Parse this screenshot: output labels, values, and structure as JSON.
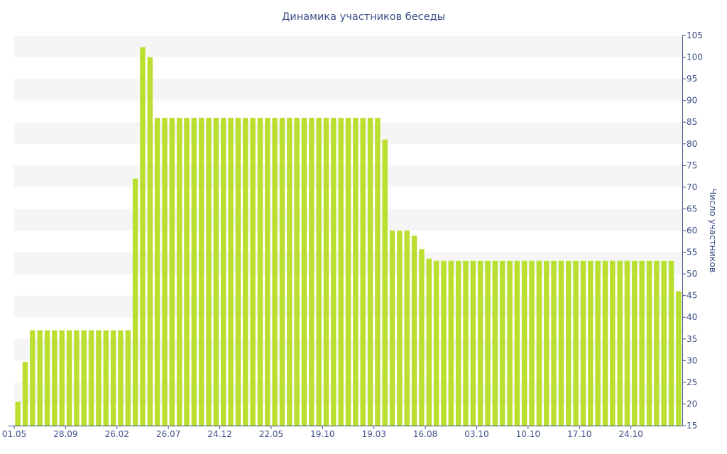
{
  "chart_data": {
    "type": "bar",
    "title": "Динамика участников беседы",
    "xlabel": "",
    "ylabel": "Число участников",
    "ylim": [
      15,
      105
    ],
    "y_ticks": [
      15,
      20,
      25,
      30,
      35,
      40,
      45,
      50,
      55,
      60,
      65,
      70,
      75,
      80,
      85,
      90,
      95,
      100,
      105
    ],
    "y_axis_side": "right",
    "grid": "alternating horizontal bands",
    "legend": "none",
    "bar_color": "#b9df2f",
    "axis_color": "#3e4f86",
    "x_ticks": [
      {
        "label": "01.05",
        "index": 0
      },
      {
        "label": "28.09",
        "index": 7
      },
      {
        "label": "26.02",
        "index": 14
      },
      {
        "label": "26.07",
        "index": 21
      },
      {
        "label": "24.12",
        "index": 28
      },
      {
        "label": "22.05",
        "index": 35
      },
      {
        "label": "19.10",
        "index": 42
      },
      {
        "label": "19.03",
        "index": 49
      },
      {
        "label": "16.08",
        "index": 56
      },
      {
        "label": "03.10",
        "index": 63
      },
      {
        "label": "10.10",
        "index": 70
      },
      {
        "label": "17.10",
        "index": 77
      },
      {
        "label": "24.10",
        "index": 84
      }
    ],
    "values": [
      20.5,
      29.7,
      37,
      37,
      37,
      37,
      37,
      37,
      37,
      37,
      37,
      37,
      37,
      37,
      37,
      37,
      72,
      102.3,
      100,
      86,
      86,
      86,
      86,
      86,
      86,
      86,
      86,
      86,
      86,
      86,
      86,
      86,
      86,
      86,
      86,
      86,
      86,
      86,
      86,
      86,
      86,
      86,
      86,
      86,
      86,
      86,
      86,
      86,
      86,
      86,
      81,
      60,
      60,
      60,
      58.8,
      55.7,
      53.5,
      53,
      53,
      53,
      53,
      53,
      53,
      53,
      53,
      53,
      53,
      53,
      53,
      53,
      53,
      53,
      53,
      53,
      53,
      53,
      53,
      53,
      53,
      53,
      53,
      53,
      53,
      53,
      53,
      53,
      53,
      53,
      53,
      53,
      46
    ]
  }
}
